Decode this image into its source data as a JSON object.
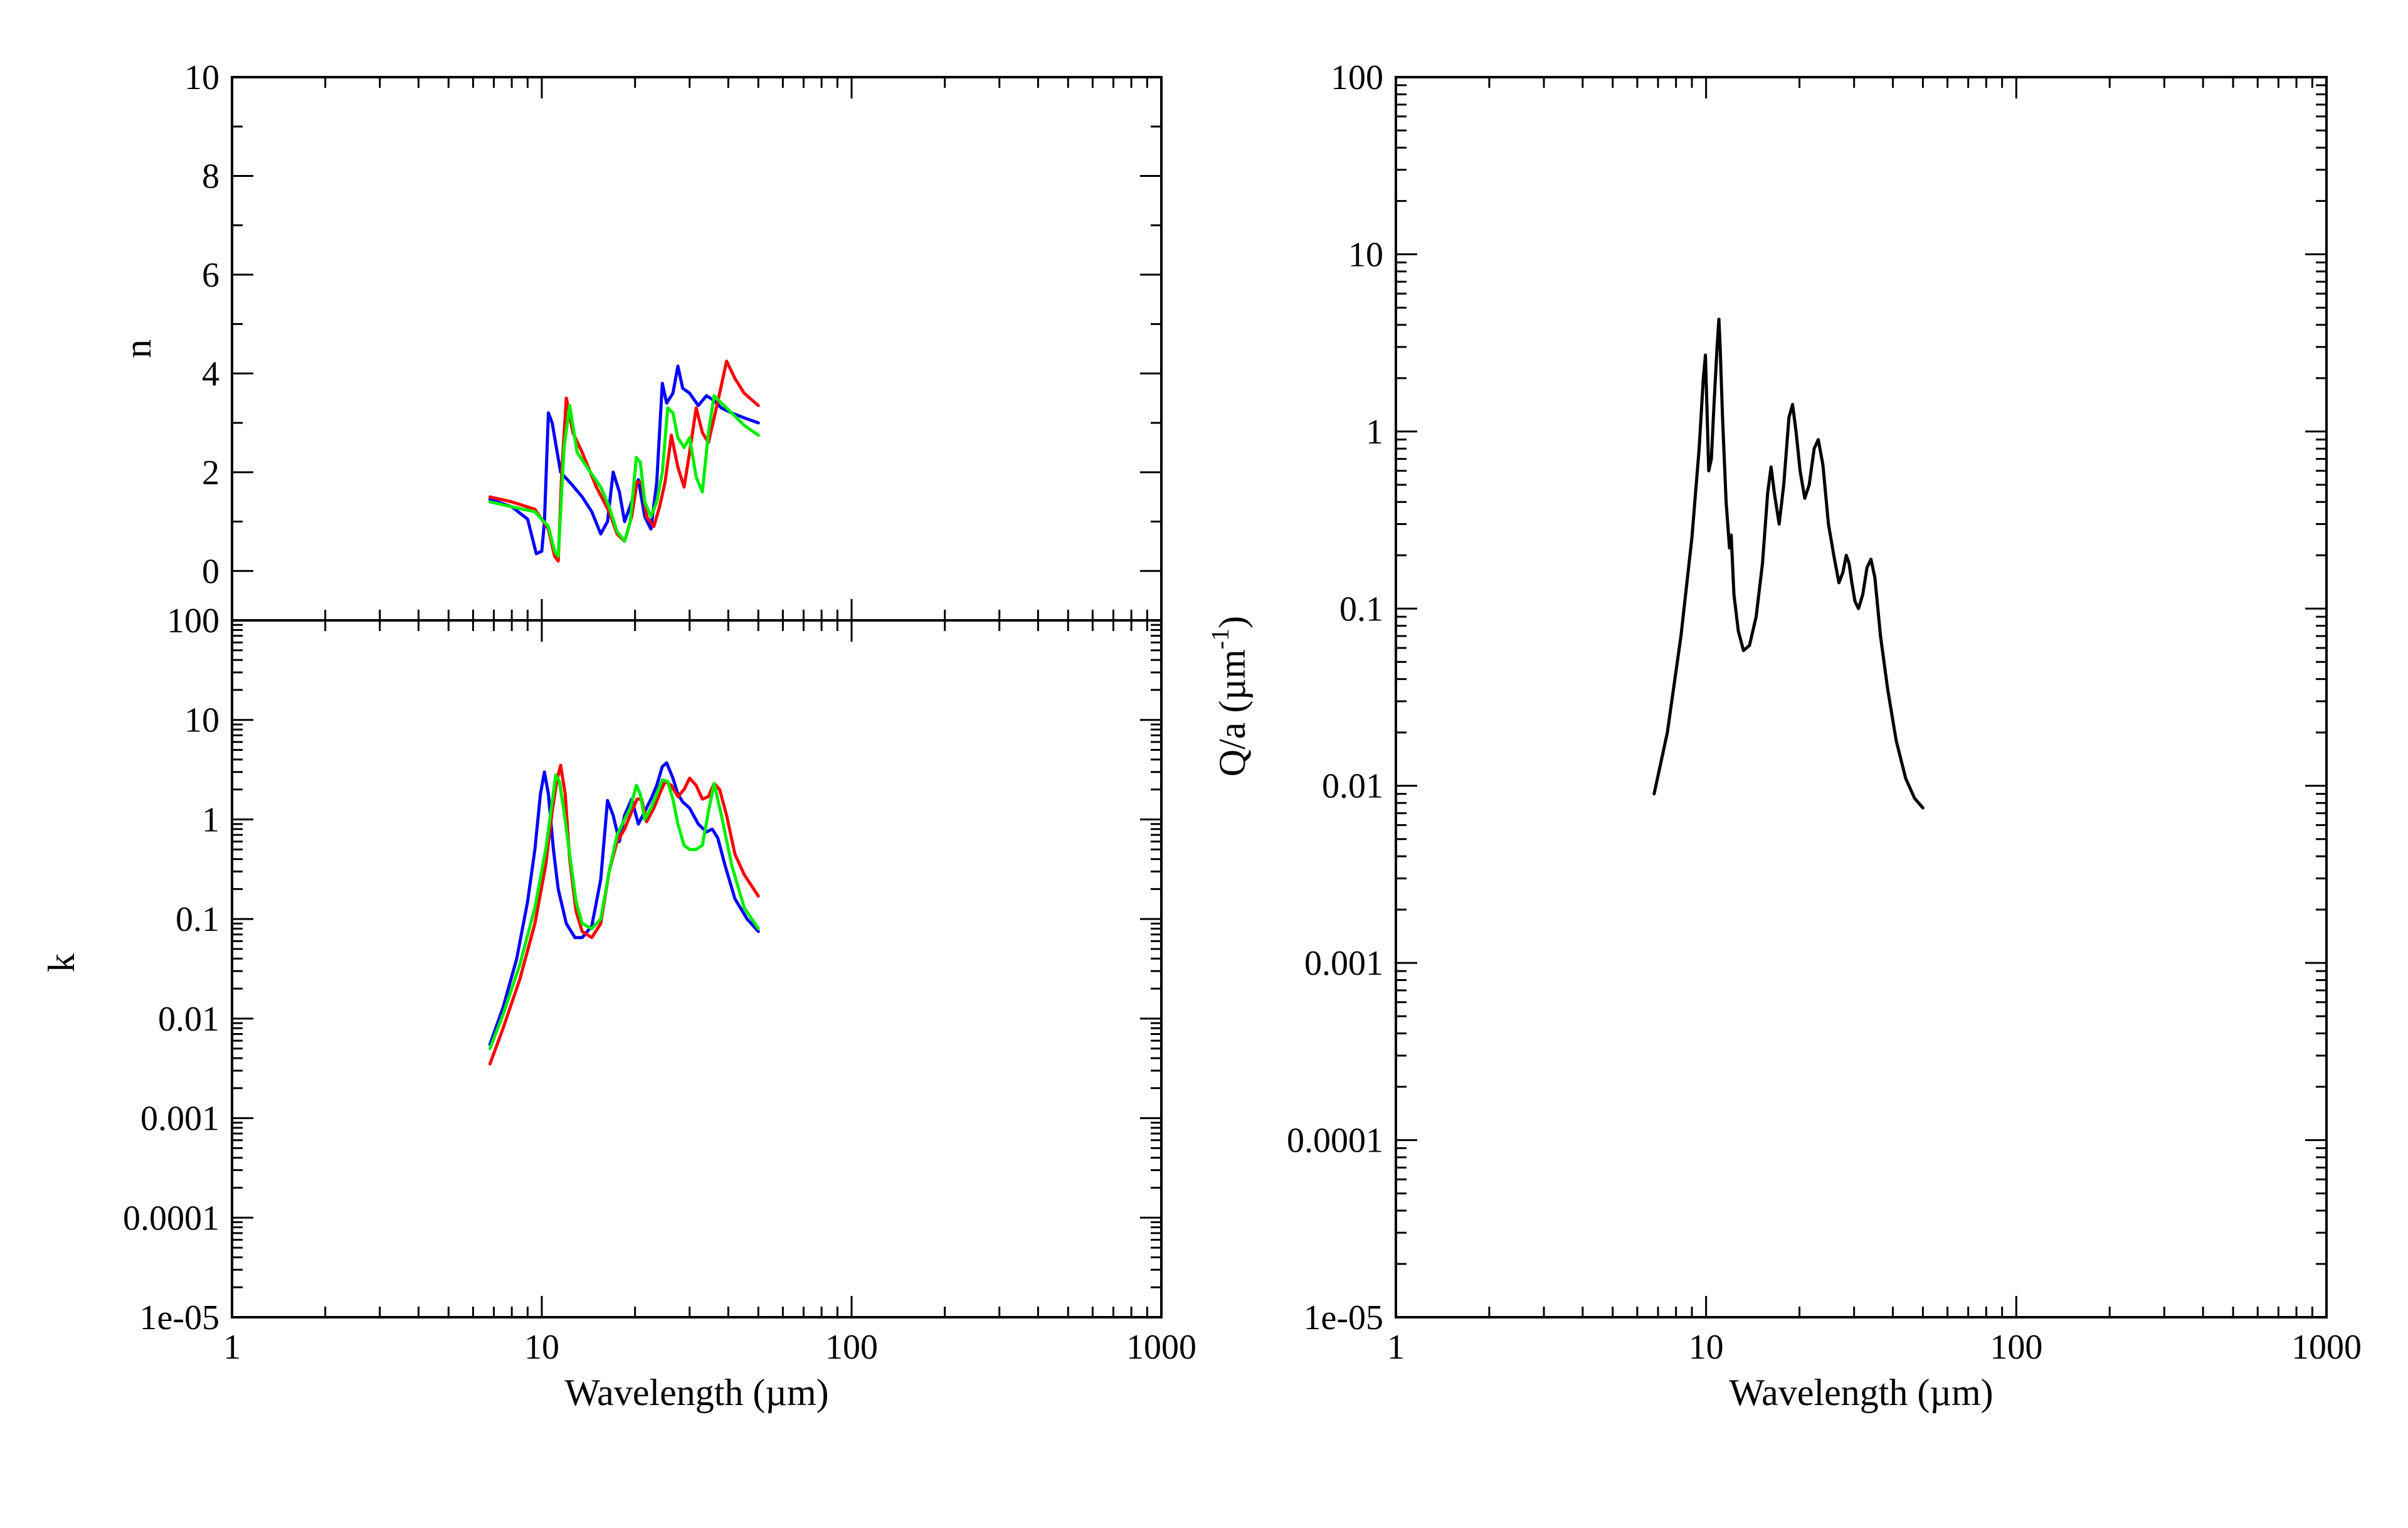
{
  "chart_data": [
    {
      "id": "n_panel",
      "type": "line",
      "xscale": "log",
      "yscale": "linear",
      "xlim": [
        1,
        1000
      ],
      "ylim": [
        -1,
        10
      ],
      "xlabel": "",
      "ylabel": "n",
      "y_ticks": [
        "0",
        "2",
        "4",
        "6",
        "8",
        "10"
      ],
      "x_ticks": [],
      "series": [
        {
          "color": "#0000ff",
          "x": [
            6.8,
            8,
            9,
            9.6,
            10,
            10.2,
            10.5,
            10.8,
            11.5,
            12.5,
            13.5,
            14.5,
            15.5,
            16.3,
            17,
            17.8,
            18.5,
            19.5,
            20.5,
            21.5,
            22.5,
            23.5,
            24.5,
            25.3,
            26.5,
            27.5,
            28.5,
            30,
            32,
            34,
            36,
            38,
            41,
            45,
            50
          ],
          "y": [
            1.45,
            1.3,
            1.05,
            0.35,
            0.4,
            1.0,
            3.2,
            3.0,
            2.0,
            1.75,
            1.5,
            1.2,
            0.75,
            1.0,
            2.0,
            1.6,
            1.0,
            1.4,
            1.85,
            1.1,
            0.85,
            1.8,
            3.8,
            3.4,
            3.6,
            4.15,
            3.7,
            3.6,
            3.35,
            3.55,
            3.45,
            3.3,
            3.2,
            3.1,
            3.0
          ]
        },
        {
          "color": "#ff0000",
          "x": [
            6.8,
            8,
            9.5,
            10.5,
            11.0,
            11.3,
            11.6,
            12,
            12.6,
            13.5,
            15,
            16.5,
            17.5,
            18.5,
            19.5,
            20.3,
            21,
            21.8,
            23,
            24,
            25,
            26.2,
            27.5,
            28.8,
            30,
            31.5,
            33,
            34.5,
            36,
            37.5,
            39.5,
            42,
            45,
            50
          ],
          "y": [
            1.5,
            1.4,
            1.25,
            0.85,
            0.3,
            0.2,
            2.0,
            3.5,
            2.8,
            2.4,
            1.7,
            1.2,
            0.75,
            0.6,
            1.1,
            1.8,
            1.8,
            1.1,
            0.9,
            1.3,
            1.8,
            2.75,
            2.1,
            1.7,
            2.4,
            3.3,
            2.8,
            2.6,
            3.1,
            3.6,
            4.25,
            3.9,
            3.6,
            3.35
          ]
        },
        {
          "color": "#00ee00",
          "x": [
            6.8,
            8,
            9.5,
            10.5,
            11.0,
            11.3,
            11.8,
            12.3,
            13,
            14,
            15.5,
            16.5,
            17.5,
            18.5,
            19.3,
            20.2,
            20.8,
            21.5,
            22.5,
            23.5,
            24.5,
            25.5,
            26.5,
            27.5,
            28.8,
            30,
            31.5,
            33,
            34.5,
            36,
            38,
            41,
            45,
            50
          ],
          "y": [
            1.4,
            1.3,
            1.2,
            0.9,
            0.4,
            0.3,
            2.5,
            3.35,
            2.4,
            2.1,
            1.7,
            1.3,
            0.8,
            0.6,
            1.0,
            2.3,
            2.2,
            1.4,
            1.1,
            1.4,
            2.0,
            3.3,
            3.2,
            2.7,
            2.5,
            2.7,
            1.9,
            1.6,
            2.8,
            3.55,
            3.4,
            3.2,
            2.95,
            2.75
          ]
        }
      ]
    },
    {
      "id": "k_panel",
      "type": "line",
      "xscale": "log",
      "yscale": "log",
      "xlim": [
        1,
        1000
      ],
      "ylim": [
        1e-05,
        100
      ],
      "xlabel": "Wavelength (µm)",
      "ylabel": "k",
      "y_ticks": [
        "1e-05",
        "0.0001",
        "0.001",
        "0.01",
        "0.1",
        "1",
        "10",
        "100"
      ],
      "x_ticks": [
        "1",
        "10",
        "100",
        "1000"
      ],
      "series": [
        {
          "color": "#0000ff",
          "x": [
            6.8,
            7.5,
            8.3,
            9.0,
            9.5,
            9.9,
            10.2,
            10.5,
            10.9,
            11.3,
            12,
            12.8,
            13.5,
            14.5,
            15.5,
            16.3,
            17,
            17.8,
            18.5,
            19.5,
            20.5,
            21.5,
            22.5,
            23.5,
            24.5,
            25.3,
            26.5,
            27.5,
            28.5,
            30,
            32,
            34,
            35.5,
            37,
            39,
            42,
            46,
            50
          ],
          "y": [
            0.0055,
            0.013,
            0.04,
            0.15,
            0.5,
            1.8,
            3.0,
            1.8,
            0.5,
            0.2,
            0.09,
            0.065,
            0.065,
            0.085,
            0.25,
            1.55,
            1.1,
            0.6,
            1.1,
            1.6,
            0.9,
            1.2,
            1.6,
            2.2,
            3.4,
            3.7,
            2.6,
            1.8,
            1.5,
            1.3,
            0.9,
            0.75,
            0.8,
            0.65,
            0.35,
            0.16,
            0.1,
            0.075
          ]
        },
        {
          "color": "#ff0000",
          "x": [
            6.8,
            7.5,
            8.5,
            9.5,
            10.3,
            10.8,
            11.2,
            11.5,
            11.9,
            12.3,
            12.9,
            13.5,
            14.5,
            15.5,
            16.5,
            17.5,
            18.5,
            19.5,
            20.3,
            21,
            21.8,
            23,
            24,
            25,
            26.2,
            27.5,
            28.8,
            30,
            31.5,
            33,
            34.5,
            36,
            37.5,
            39.5,
            42,
            45,
            50
          ],
          "y": [
            0.0035,
            0.008,
            0.025,
            0.09,
            0.35,
            1.2,
            2.5,
            3.5,
            1.8,
            0.4,
            0.12,
            0.075,
            0.065,
            0.09,
            0.3,
            0.6,
            0.8,
            1.2,
            1.6,
            1.6,
            0.95,
            1.3,
            1.8,
            2.4,
            2.2,
            1.7,
            2.0,
            2.6,
            2.2,
            1.6,
            1.7,
            2.3,
            2.0,
            1.1,
            0.45,
            0.28,
            0.17
          ]
        },
        {
          "color": "#00ee00",
          "x": [
            6.8,
            7.5,
            8.5,
            9.5,
            10.3,
            10.8,
            11.1,
            11.4,
            11.8,
            12.3,
            12.9,
            13.5,
            14.5,
            15.5,
            16.5,
            17.5,
            18.5,
            19.3,
            20.2,
            20.8,
            21.5,
            22.5,
            23.5,
            24.5,
            25.5,
            26.5,
            27.5,
            28.8,
            30,
            31.5,
            33,
            34.5,
            36,
            38,
            41,
            45,
            50
          ],
          "y": [
            0.005,
            0.011,
            0.035,
            0.13,
            0.5,
            1.5,
            2.8,
            2.4,
            1.2,
            0.45,
            0.15,
            0.09,
            0.08,
            0.1,
            0.3,
            0.7,
            1.0,
            1.3,
            2.2,
            1.8,
            1.0,
            1.3,
            1.8,
            2.5,
            2.4,
            1.6,
            0.9,
            0.55,
            0.5,
            0.5,
            0.55,
            1.2,
            2.3,
            1.1,
            0.35,
            0.13,
            0.08
          ]
        }
      ]
    },
    {
      "id": "q_panel",
      "type": "line",
      "xscale": "log",
      "yscale": "log",
      "xlim": [
        1,
        1000
      ],
      "ylim": [
        1e-05,
        100
      ],
      "xlabel": "Wavelength (µm)",
      "ylabel": "Q/a (µm⁻¹)",
      "ylabel_parts": {
        "main": "Q/a (µm",
        "sup": "-1",
        "close": ")"
      },
      "y_ticks": [
        "1e-05",
        "0.0001",
        "0.001",
        "0.01",
        "0.1",
        "1",
        "10",
        "100"
      ],
      "x_ticks": [
        "1",
        "10",
        "100",
        "1000"
      ],
      "series": [
        {
          "color": "#000000",
          "x": [
            6.8,
            7.5,
            8.3,
            9.0,
            9.5,
            9.8,
            9.95,
            10.05,
            10.2,
            10.4,
            10.6,
            10.85,
            11.0,
            11.1,
            11.3,
            11.6,
            11.9,
            12.05,
            12.15,
            12.3,
            12.7,
            13.2,
            13.8,
            14.5,
            15.2,
            15.8,
            16.2,
            16.6,
            17.2,
            17.8,
            18.5,
            19.0,
            19.5,
            20.1,
            20.8,
            21.5,
            22.3,
            23.0,
            23.8,
            24.8,
            25.8,
            26.8,
            27.6,
            28.3,
            28.9,
            29.5,
            30.2,
            31.0,
            32.0,
            33.0,
            34.0,
            35.0,
            36.5,
            38.5,
            41,
            44,
            47,
            50
          ],
          "y": [
            0.009,
            0.02,
            0.07,
            0.25,
            0.8,
            2.0,
            2.7,
            1.5,
            0.6,
            0.7,
            1.4,
            3.0,
            4.3,
            3.0,
            1.2,
            0.4,
            0.22,
            0.26,
            0.19,
            0.12,
            0.075,
            0.058,
            0.062,
            0.09,
            0.18,
            0.45,
            0.63,
            0.45,
            0.3,
            0.5,
            1.2,
            1.42,
            1.0,
            0.6,
            0.42,
            0.5,
            0.8,
            0.9,
            0.65,
            0.3,
            0.2,
            0.14,
            0.16,
            0.2,
            0.18,
            0.14,
            0.11,
            0.1,
            0.12,
            0.17,
            0.19,
            0.15,
            0.07,
            0.035,
            0.018,
            0.011,
            0.0085,
            0.0075
          ]
        }
      ]
    }
  ]
}
